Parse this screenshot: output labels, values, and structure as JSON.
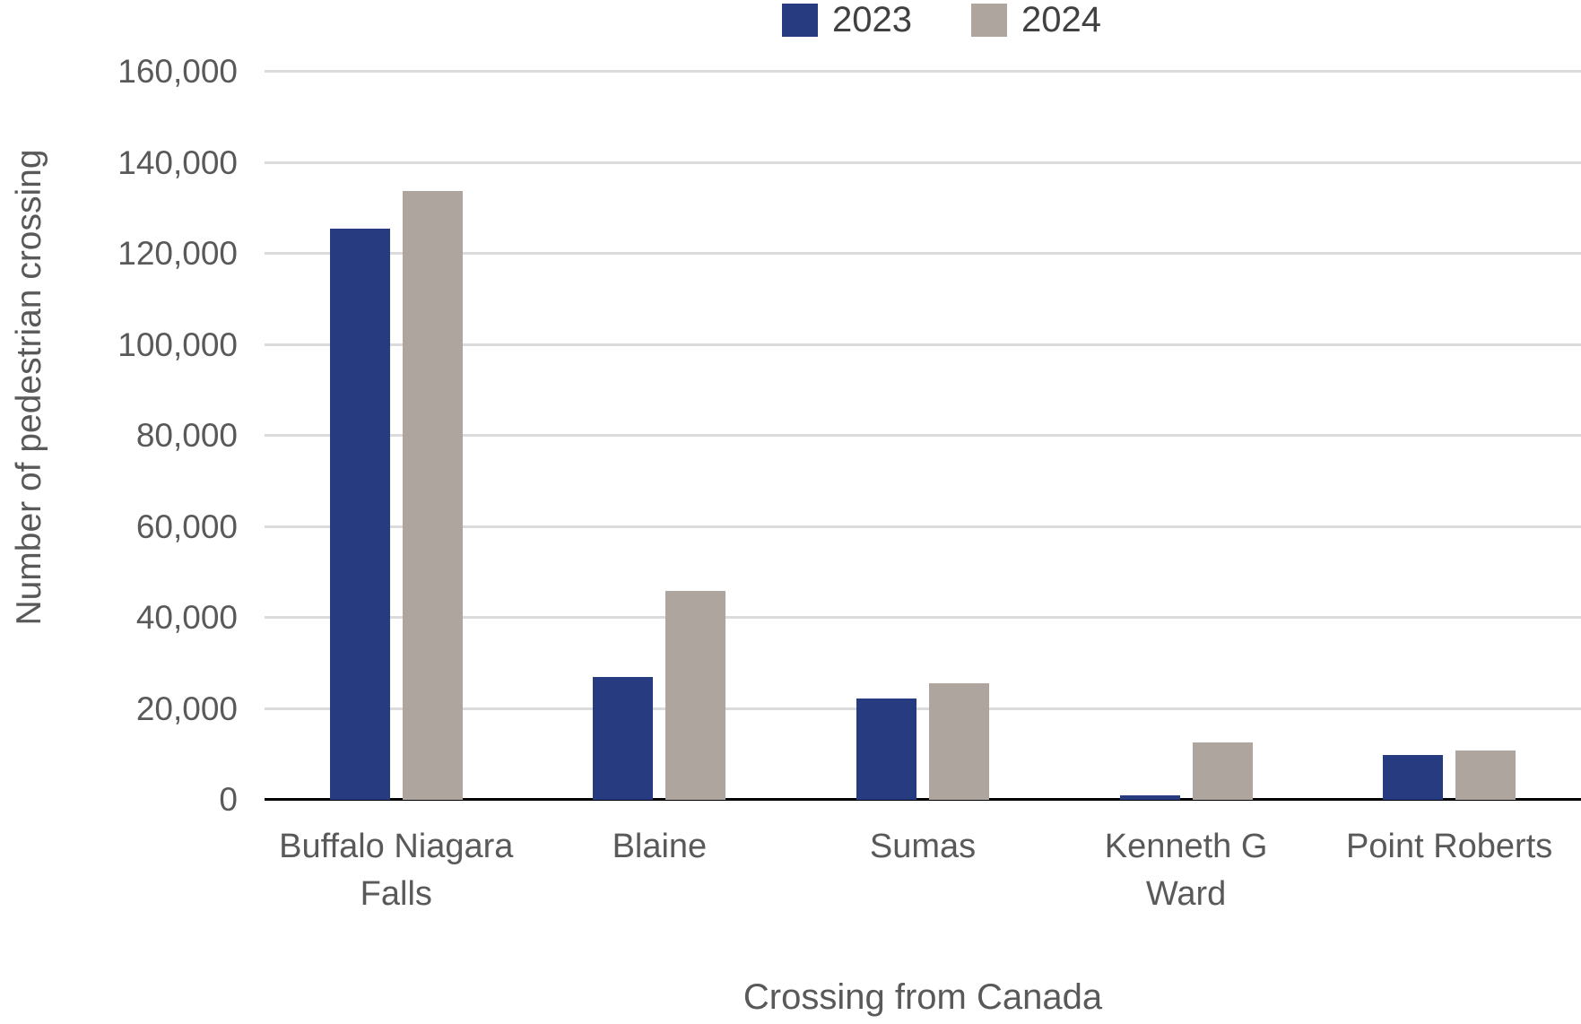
{
  "chart_data": {
    "type": "bar",
    "title": "",
    "categories": [
      "Buffalo Niagara Falls",
      "Blaine",
      "Sumas",
      "Kenneth G Ward",
      "Point Roberts"
    ],
    "category_labels": [
      "Buffalo Niagara\nFalls",
      "Blaine",
      "Sumas",
      "Kenneth G\nWard",
      "Point Roberts"
    ],
    "series": [
      {
        "name": "2023",
        "color": "#273C80",
        "values": [
          125500,
          27000,
          22300,
          1000,
          9900
        ]
      },
      {
        "name": "2024",
        "color": "#AEA59E",
        "values": [
          133800,
          46000,
          25700,
          12600,
          10800
        ]
      }
    ],
    "xlabel": "Crossing from Canada",
    "ylabel": "Number of pedestrian crossing",
    "ylim": [
      0,
      160000
    ],
    "ytick_interval": 20000,
    "ytick_labels": [
      "0",
      "20,000",
      "40,000",
      "60,000",
      "80,000",
      "100,000",
      "120,000",
      "140,000",
      "160,000"
    ],
    "grid": "horizontal",
    "legend_position": "top-center"
  },
  "colors": {
    "gridline": "#DBDBDB",
    "axis_line": "#000000",
    "tick_text": "#595959",
    "legend_text": "#404040",
    "background": "#FFFFFF"
  }
}
